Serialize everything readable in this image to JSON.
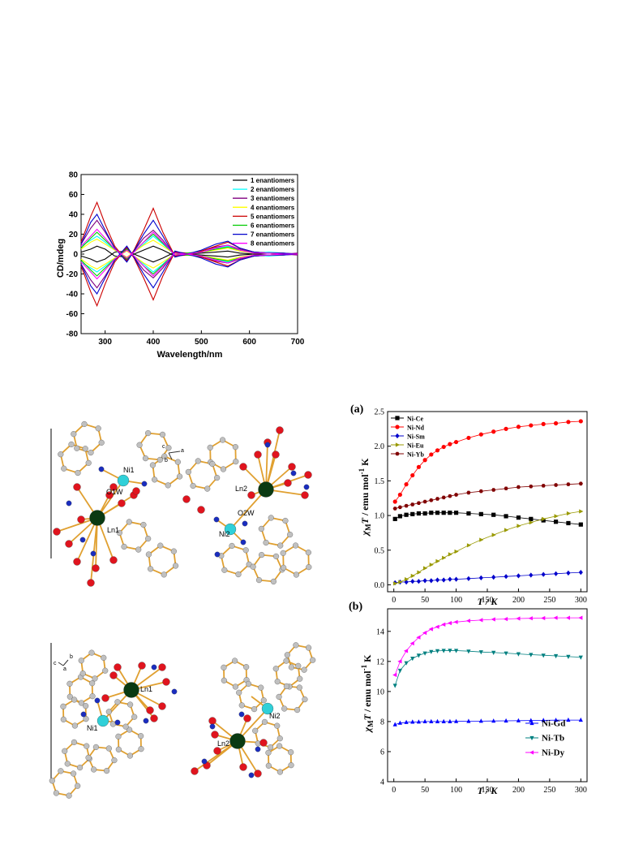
{
  "chart_data": [
    {
      "type": "line",
      "xlabel": "Wavelength/nm",
      "ylabel": "CD/mdeg",
      "xlim": [
        250,
        700
      ],
      "ylim": [
        -80,
        80
      ],
      "xticks": [
        "300",
        "400",
        "500",
        "600",
        "700"
      ],
      "yticks": [
        "80",
        "60",
        "40",
        "20",
        "0",
        "-20",
        "-40",
        "-60",
        "-80"
      ],
      "legend_position": "top-right",
      "series": [
        {
          "name": "1 enantiomers",
          "color": "#000000",
          "x": [
            250,
            270,
            283,
            300,
            320,
            345,
            360,
            380,
            400,
            420,
            445,
            470,
            500,
            530,
            555,
            580,
            610,
            640,
            670,
            700
          ],
          "y": [
            2,
            5,
            8,
            5,
            -2,
            -3,
            0,
            4,
            8,
            4,
            -2,
            0,
            -1,
            -2,
            -3,
            -1,
            0,
            -1,
            0,
            0
          ]
        },
        {
          "name": "2 enantiomers",
          "color": "#00ffff",
          "x": [
            250,
            270,
            283,
            300,
            320,
            345,
            360,
            380,
            400,
            420,
            445,
            470,
            500,
            530,
            555,
            580,
            610,
            640,
            670,
            700
          ],
          "y": [
            8,
            14,
            18,
            12,
            4,
            -4,
            2,
            10,
            18,
            10,
            -1,
            1,
            2,
            5,
            8,
            4,
            1,
            2,
            1,
            0
          ]
        },
        {
          "name": "3 enantiomers",
          "color": "#800080",
          "x": [
            250,
            270,
            283,
            300,
            320,
            345,
            360,
            380,
            400,
            420,
            445,
            470,
            500,
            530,
            555,
            580,
            610,
            640,
            670,
            700
          ],
          "y": [
            10,
            26,
            34,
            22,
            6,
            -6,
            3,
            16,
            24,
            14,
            -2,
            0,
            3,
            7,
            9,
            5,
            2,
            1,
            0,
            1
          ]
        },
        {
          "name": "4 enantiomers",
          "color": "#ffff00",
          "x": [
            250,
            270,
            283,
            300,
            320,
            345,
            360,
            380,
            400,
            420,
            445,
            470,
            500,
            530,
            555,
            580,
            610,
            640,
            670,
            700
          ],
          "y": [
            5,
            12,
            15,
            10,
            4,
            -3,
            2,
            9,
            14,
            8,
            0,
            1,
            2,
            4,
            6,
            3,
            1,
            1,
            0,
            0
          ]
        },
        {
          "name": "5 enantiomers",
          "color": "#cc0000",
          "x": [
            250,
            270,
            283,
            300,
            320,
            345,
            360,
            380,
            400,
            420,
            445,
            470,
            500,
            530,
            555,
            580,
            610,
            640,
            670,
            700
          ],
          "y": [
            12,
            38,
            52,
            30,
            8,
            -7,
            4,
            24,
            46,
            22,
            -2,
            -1,
            3,
            8,
            12,
            6,
            2,
            1,
            1,
            0
          ]
        },
        {
          "name": "6 enantiomers",
          "color": "#00cc00",
          "x": [
            250,
            270,
            283,
            300,
            320,
            345,
            360,
            380,
            400,
            420,
            445,
            470,
            500,
            530,
            555,
            580,
            610,
            640,
            670,
            700
          ],
          "y": [
            6,
            16,
            22,
            14,
            5,
            -5,
            2,
            12,
            20,
            11,
            -1,
            1,
            2,
            5,
            7,
            4,
            1,
            1,
            0,
            0
          ]
        },
        {
          "name": "7 enantiomers",
          "color": "#0000cc",
          "x": [
            250,
            270,
            283,
            300,
            320,
            345,
            360,
            380,
            400,
            420,
            445,
            470,
            500,
            530,
            555,
            580,
            610,
            640,
            670,
            700
          ],
          "y": [
            10,
            32,
            40,
            24,
            6,
            -8,
            3,
            20,
            34,
            18,
            -3,
            0,
            4,
            10,
            13,
            6,
            2,
            1,
            1,
            0
          ]
        },
        {
          "name": "8 enantiomers",
          "color": "#ff00ff",
          "x": [
            250,
            270,
            283,
            300,
            320,
            345,
            360,
            380,
            400,
            420,
            445,
            470,
            500,
            530,
            555,
            580,
            610,
            640,
            670,
            700
          ],
          "y": [
            8,
            18,
            25,
            16,
            5,
            -4,
            2,
            12,
            22,
            12,
            -1,
            0,
            2,
            6,
            9,
            4,
            1,
            1,
            0,
            0
          ]
        }
      ]
    },
    {
      "type": "scatter",
      "panel_label": "(a)",
      "xlabel": "T / K",
      "ylabel": "χMT / emu mol-1 K",
      "xlim": [
        -10,
        310
      ],
      "ylim": [
        -0.1,
        2.5
      ],
      "xticks": [
        "0",
        "50",
        "100",
        "150",
        "200",
        "250",
        "300"
      ],
      "yticks": [
        "0.0",
        "0.5",
        "1.0",
        "1.5",
        "2.0",
        "2.5"
      ],
      "legend_position": "top-left",
      "series": [
        {
          "name": "Ni-Ce",
          "color": "#000000",
          "marker": "square",
          "x": [
            2,
            10,
            20,
            30,
            40,
            50,
            60,
            70,
            80,
            90,
            100,
            120,
            140,
            160,
            180,
            200,
            220,
            240,
            260,
            280,
            300
          ],
          "y": [
            0.95,
            0.99,
            1.01,
            1.02,
            1.03,
            1.03,
            1.04,
            1.04,
            1.04,
            1.04,
            1.04,
            1.03,
            1.02,
            1.01,
            0.99,
            0.97,
            0.95,
            0.93,
            0.91,
            0.89,
            0.87
          ]
        },
        {
          "name": "Ni-Nd",
          "color": "#ff0000",
          "marker": "circle",
          "x": [
            2,
            10,
            20,
            30,
            40,
            50,
            60,
            70,
            80,
            90,
            100,
            120,
            140,
            160,
            180,
            200,
            220,
            240,
            260,
            280,
            300
          ],
          "y": [
            1.2,
            1.3,
            1.45,
            1.58,
            1.7,
            1.8,
            1.88,
            1.94,
            1.99,
            2.03,
            2.06,
            2.12,
            2.17,
            2.21,
            2.25,
            2.28,
            2.3,
            2.32,
            2.33,
            2.35,
            2.36
          ]
        },
        {
          "name": "Ni-Sm",
          "color": "#0000cc",
          "marker": "diamond",
          "x": [
            2,
            10,
            20,
            30,
            40,
            50,
            60,
            70,
            80,
            90,
            100,
            120,
            140,
            160,
            180,
            200,
            220,
            240,
            260,
            280,
            300
          ],
          "y": [
            0.03,
            0.04,
            0.04,
            0.05,
            0.05,
            0.06,
            0.06,
            0.07,
            0.07,
            0.08,
            0.08,
            0.09,
            0.1,
            0.11,
            0.12,
            0.13,
            0.14,
            0.15,
            0.16,
            0.17,
            0.18
          ]
        },
        {
          "name": "Ni-Eu",
          "color": "#999900",
          "marker": "triangle-right",
          "x": [
            2,
            10,
            20,
            30,
            40,
            50,
            60,
            70,
            80,
            90,
            100,
            120,
            140,
            160,
            180,
            200,
            220,
            240,
            260,
            280,
            300
          ],
          "y": [
            0.02,
            0.04,
            0.08,
            0.13,
            0.18,
            0.24,
            0.29,
            0.34,
            0.39,
            0.44,
            0.48,
            0.57,
            0.65,
            0.72,
            0.79,
            0.85,
            0.9,
            0.95,
            0.99,
            1.03,
            1.06
          ]
        },
        {
          "name": "Ni-Yb",
          "color": "#800000",
          "marker": "hexagon",
          "x": [
            2,
            10,
            20,
            30,
            40,
            50,
            60,
            70,
            80,
            90,
            100,
            120,
            140,
            160,
            180,
            200,
            220,
            240,
            260,
            280,
            300
          ],
          "y": [
            1.1,
            1.12,
            1.14,
            1.16,
            1.18,
            1.2,
            1.22,
            1.24,
            1.26,
            1.28,
            1.3,
            1.33,
            1.35,
            1.37,
            1.39,
            1.41,
            1.42,
            1.43,
            1.44,
            1.45,
            1.46
          ]
        }
      ]
    },
    {
      "type": "scatter",
      "panel_label": "(b)",
      "xlabel": "T / K",
      "ylabel": "χMT / emu mol-1 K",
      "xlim": [
        -10,
        310
      ],
      "ylim": [
        4,
        15.5
      ],
      "xticks": [
        "0",
        "50",
        "100",
        "150",
        "200",
        "250",
        "300"
      ],
      "yticks": [
        "4",
        "6",
        "8",
        "10",
        "12",
        "14"
      ],
      "legend_position": "bottom-right",
      "series": [
        {
          "name": "Ni-Gd",
          "color": "#0000ff",
          "marker": "triangle-up",
          "x": [
            2,
            10,
            20,
            30,
            40,
            50,
            60,
            70,
            80,
            90,
            100,
            120,
            140,
            160,
            180,
            200,
            220,
            240,
            260,
            280,
            300
          ],
          "y": [
            7.8,
            7.9,
            7.95,
            7.97,
            7.98,
            8.0,
            8.0,
            8.0,
            8.0,
            8.0,
            8.01,
            8.02,
            8.03,
            8.04,
            8.05,
            8.06,
            8.07,
            8.08,
            8.09,
            8.1,
            8.1
          ]
        },
        {
          "name": "Ni-Tb",
          "color": "#008080",
          "marker": "triangle-down",
          "x": [
            2,
            10,
            20,
            30,
            40,
            50,
            60,
            70,
            80,
            90,
            100,
            120,
            140,
            160,
            180,
            200,
            220,
            240,
            260,
            280,
            300
          ],
          "y": [
            10.4,
            11.4,
            11.9,
            12.2,
            12.4,
            12.55,
            12.65,
            12.7,
            12.72,
            12.73,
            12.72,
            12.68,
            12.63,
            12.59,
            12.55,
            12.5,
            12.45,
            12.41,
            12.37,
            12.32,
            12.28
          ]
        },
        {
          "name": "Ni-Dy",
          "color": "#ff00ff",
          "marker": "triangle-left",
          "x": [
            2,
            10,
            20,
            30,
            40,
            50,
            60,
            70,
            80,
            90,
            100,
            120,
            140,
            160,
            180,
            200,
            220,
            240,
            260,
            280,
            300
          ],
          "y": [
            11.1,
            12.0,
            12.7,
            13.2,
            13.6,
            13.9,
            14.15,
            14.3,
            14.45,
            14.55,
            14.62,
            14.7,
            14.75,
            14.8,
            14.82,
            14.85,
            14.87,
            14.88,
            14.9,
            14.9,
            14.9
          ]
        }
      ]
    }
  ],
  "structure1": {
    "atoms": [
      "Ni1",
      "O1W",
      "Ln1",
      "Ln2",
      "O2W",
      "Ni2"
    ],
    "axes": [
      "c",
      "a",
      "b"
    ]
  },
  "structure2": {
    "atoms": [
      "Ln1",
      "Ni1",
      "Ni2",
      "Ln2"
    ],
    "axes": [
      "b",
      "c",
      "a"
    ]
  },
  "colors": {
    "bond": "#e0a030",
    "oxygen": "#e0141e",
    "nitrogen": "#1a2dbf",
    "carbon": "#c0c0c0",
    "nickel": "#30d0d8",
    "lanthanide": "#0a3a12"
  }
}
